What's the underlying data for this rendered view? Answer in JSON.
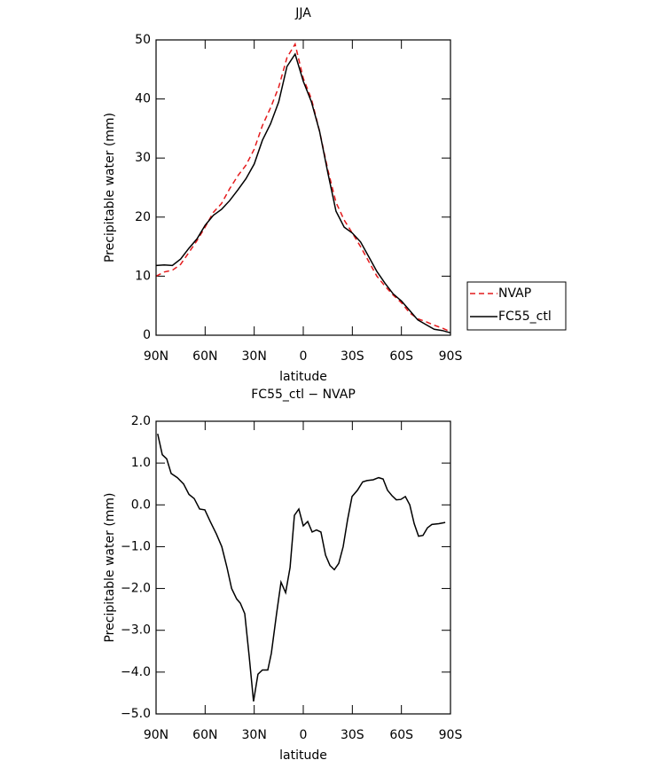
{
  "chart_data": [
    {
      "type": "line",
      "title": "JJA",
      "xlabel": "latitude",
      "ylabel": "Precipitable water (mm)",
      "x": [
        90,
        85,
        80,
        75,
        70,
        65,
        60,
        55,
        50,
        45,
        40,
        35,
        30,
        25,
        20,
        15,
        10,
        5,
        0,
        -5,
        -10,
        -15,
        -20,
        -25,
        -30,
        -35,
        -40,
        -45,
        -50,
        -55,
        -60,
        -65,
        -70,
        -75,
        -80,
        -85,
        -90
      ],
      "series": [
        {
          "name": "NVAP",
          "color": "#e41a1c",
          "dash": true,
          "values": [
            10.0,
            10.7,
            11.0,
            12.0,
            14.0,
            16.0,
            18.3,
            20.8,
            22.3,
            24.8,
            27.0,
            28.8,
            31.5,
            35.5,
            38.5,
            42.0,
            47.0,
            49.3,
            43.5,
            40.0,
            34.5,
            28.0,
            22.5,
            19.5,
            17.3,
            15.0,
            12.5,
            10.0,
            8.3,
            6.8,
            5.5,
            3.8,
            2.8,
            2.3,
            1.7,
            1.2,
            0.6
          ]
        },
        {
          "name": "FC55_ctl",
          "color": "#000000",
          "dash": false,
          "values": [
            11.8,
            11.9,
            11.8,
            12.9,
            14.7,
            16.3,
            18.6,
            20.3,
            21.3,
            22.8,
            24.6,
            26.5,
            29.0,
            33.0,
            35.8,
            39.5,
            45.5,
            47.6,
            43.0,
            39.5,
            34.5,
            27.5,
            21.0,
            18.3,
            17.3,
            15.8,
            13.3,
            10.8,
            8.8,
            7.0,
            5.8,
            4.2,
            2.6,
            1.8,
            1.0,
            0.8,
            0.4
          ]
        }
      ],
      "xlim": [
        90,
        -90
      ],
      "xticks": [
        {
          "value": 90,
          "label": "90N"
        },
        {
          "value": 60,
          "label": "60N"
        },
        {
          "value": 30,
          "label": "30N"
        },
        0,
        {
          "value": -30,
          "label": "30S"
        },
        {
          "value": -60,
          "label": "60S"
        },
        {
          "value": -90,
          "label": "90S"
        }
      ],
      "ylim": [
        0,
        50
      ],
      "yticks": [
        0,
        10,
        20,
        30,
        40,
        50
      ],
      "legend": "right"
    },
    {
      "type": "line",
      "title": "FC55_ctl − NVAP",
      "xlabel": "latitude",
      "ylabel": "Precipitable water (mm)",
      "x": [
        89,
        86.2,
        83.5,
        80.8,
        77,
        73.2,
        69.9,
        66.7,
        63.4,
        60.2,
        56.9,
        53.1,
        49.8,
        46.6,
        43.8,
        40.7,
        38.5,
        35.8,
        33.1,
        30.4,
        27.7,
        25,
        21.7,
        19.5,
        16.3,
        13.6,
        10.8,
        8.1,
        5.4,
        2.7,
        0,
        -2.7,
        -5.4,
        -8.1,
        -10.8,
        -13.6,
        -16.3,
        -19,
        -21.7,
        -24.4,
        -27.1,
        -29.8,
        -33.1,
        -36.3,
        -39,
        -42.8,
        -46.1,
        -48.8,
        -51.5,
        -54.2,
        -56.9,
        -59.6,
        -62.4,
        -65.1,
        -67.8,
        -70.5,
        -73.2,
        -75.9,
        -78.6,
        -82.9,
        -86.8
      ],
      "series": [
        {
          "name": "FC55_ctl − NVAP",
          "color": "#000000",
          "dash": false,
          "values": [
            1.7,
            1.2,
            1.1,
            0.75,
            0.65,
            0.5,
            0.25,
            0.15,
            -0.1,
            -0.12,
            -0.4,
            -0.7,
            -1.0,
            -1.5,
            -2.0,
            -2.25,
            -2.35,
            -2.6,
            -3.6,
            -4.7,
            -4.05,
            -3.95,
            -3.95,
            -3.55,
            -2.6,
            -1.85,
            -2.1,
            -1.5,
            -0.25,
            -0.1,
            -0.5,
            -0.4,
            -0.65,
            -0.6,
            -0.65,
            -1.2,
            -1.45,
            -1.55,
            -1.4,
            -1.0,
            -0.35,
            0.2,
            0.35,
            0.55,
            0.58,
            0.6,
            0.65,
            0.62,
            0.35,
            0.22,
            0.12,
            0.13,
            0.2,
            0.0,
            -0.45,
            -0.75,
            -0.73,
            -0.55,
            -0.47,
            -0.45,
            -0.42
          ]
        }
      ],
      "xlim": [
        90,
        -90
      ],
      "xticks": [
        {
          "value": 90,
          "label": "90N"
        },
        {
          "value": 60,
          "label": "60N"
        },
        {
          "value": 30,
          "label": "30N"
        },
        0,
        {
          "value": -30,
          "label": "30S"
        },
        {
          "value": -60,
          "label": "60S"
        },
        {
          "value": -90,
          "label": "90S"
        }
      ],
      "ylim": [
        -5,
        2
      ],
      "yticks": [
        {
          "value": 2,
          "label": "2.0"
        },
        {
          "value": 1,
          "label": "1.0"
        },
        {
          "value": 0,
          "label": "0.0"
        },
        {
          "value": -1,
          "label": "−1.0"
        },
        {
          "value": -2,
          "label": "−2.0"
        },
        {
          "value": -3,
          "label": "−3.0"
        },
        {
          "value": -4,
          "label": "−4.0"
        },
        {
          "value": -5,
          "label": "−5.0"
        }
      ]
    }
  ]
}
